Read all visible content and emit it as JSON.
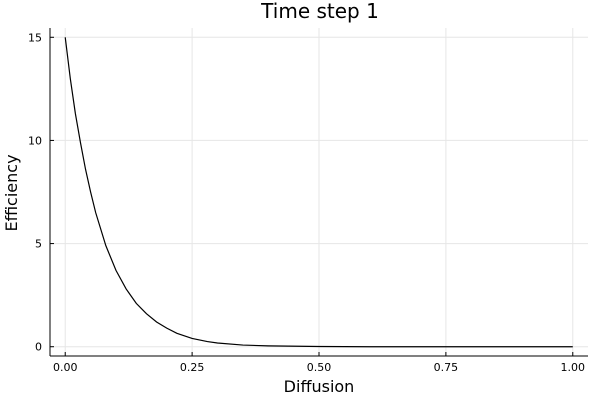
{
  "chart_data": {
    "type": "line",
    "title": "Time step 1",
    "xlabel": "Diffusion",
    "ylabel": "Efficiency",
    "xlim": [
      -0.03,
      1.03
    ],
    "ylim": [
      -0.45,
      15.45
    ],
    "xticks": [
      0.0,
      0.25,
      0.5,
      0.75,
      1.0
    ],
    "xtick_labels": [
      "0.00",
      "0.25",
      "0.50",
      "0.75",
      "1.00"
    ],
    "yticks": [
      0,
      5,
      10,
      15
    ],
    "ytick_labels": [
      "0",
      "5",
      "10",
      "15"
    ],
    "grid": true,
    "legend": "none",
    "series": [
      {
        "color": "#000000",
        "x": [
          0.0,
          0.01,
          0.02,
          0.03,
          0.04,
          0.05,
          0.06,
          0.08,
          0.1,
          0.12,
          0.14,
          0.16,
          0.18,
          0.2,
          0.22,
          0.25,
          0.28,
          0.3,
          0.35,
          0.4,
          0.5,
          0.6,
          0.75,
          1.0
        ],
        "y": [
          15.0,
          13.0,
          11.3,
          9.9,
          8.6,
          7.5,
          6.5,
          4.9,
          3.7,
          2.8,
          2.1,
          1.6,
          1.2,
          0.9,
          0.65,
          0.4,
          0.25,
          0.18,
          0.08,
          0.04,
          0.01,
          0.0,
          0.0,
          0.0
        ]
      }
    ]
  }
}
